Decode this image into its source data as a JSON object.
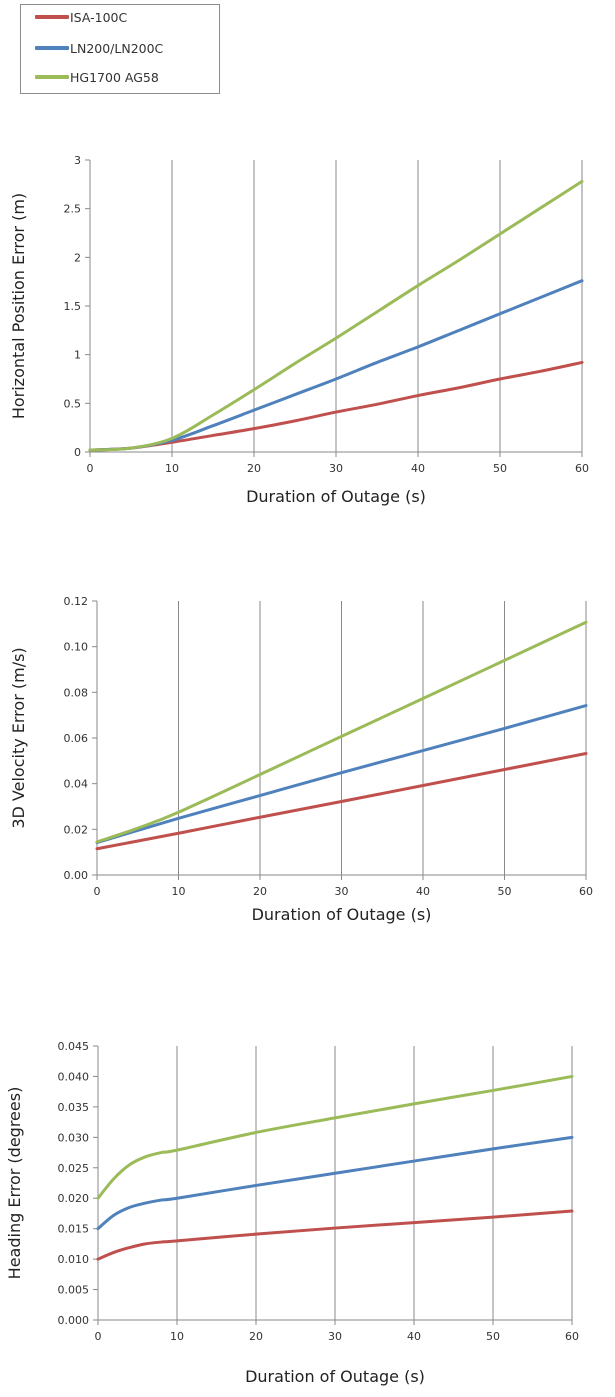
{
  "legend": {
    "items": [
      {
        "label": "ISA-100C",
        "color": "#c0504d"
      },
      {
        "label": "LN200/LN200C",
        "color": "#4f81bd"
      },
      {
        "label": "HG1700 AG58",
        "color": "#9bbb59"
      }
    ]
  },
  "chart_data": [
    {
      "type": "line",
      "title": "",
      "xlabel": "Duration of Outage (s)",
      "ylabel": "Horizontal Position Error (m)",
      "xlim": [
        0,
        60
      ],
      "ylim": [
        0,
        3
      ],
      "xticks": [
        "0",
        "10",
        "20",
        "30",
        "40",
        "50",
        "60"
      ],
      "yticks": [
        "0",
        "0.5",
        "1",
        "1.5",
        "2",
        "2.5",
        "3"
      ],
      "grid": "vertical",
      "series": [
        {
          "name": "ISA-100C",
          "color": "#c0504d",
          "x": [
            0,
            5,
            10,
            15,
            20,
            25,
            30,
            35,
            40,
            45,
            50,
            55,
            60
          ],
          "y": [
            0.02,
            0.04,
            0.1,
            0.17,
            0.24,
            0.32,
            0.41,
            0.49,
            0.58,
            0.66,
            0.75,
            0.83,
            0.92
          ]
        },
        {
          "name": "LN200/LN200C",
          "color": "#4f81bd",
          "x": [
            0,
            5,
            10,
            15,
            20,
            25,
            30,
            35,
            40,
            45,
            50,
            55,
            60
          ],
          "y": [
            0.02,
            0.04,
            0.12,
            0.27,
            0.43,
            0.59,
            0.75,
            0.92,
            1.08,
            1.25,
            1.42,
            1.59,
            1.76
          ]
        },
        {
          "name": "HG1700 AG58",
          "color": "#9bbb59",
          "x": [
            0,
            5,
            10,
            15,
            20,
            25,
            30,
            35,
            40,
            45,
            50,
            55,
            60
          ],
          "y": [
            0.02,
            0.04,
            0.14,
            0.38,
            0.64,
            0.91,
            1.17,
            1.44,
            1.71,
            1.97,
            2.24,
            2.51,
            2.78
          ]
        }
      ]
    },
    {
      "type": "line",
      "title": "",
      "xlabel": "Duration of Outage (s)",
      "ylabel": "3D Velocity Error (m/s)",
      "xlim": [
        0,
        60
      ],
      "ylim": [
        0,
        0.12
      ],
      "xticks": [
        "0",
        "10",
        "20",
        "30",
        "40",
        "50",
        "60"
      ],
      "yticks": [
        "0.00",
        "0.02",
        "0.04",
        "0.06",
        "0.08",
        "0.10",
        "0.12"
      ],
      "grid": "vertical",
      "series": [
        {
          "name": "ISA-100C",
          "color": "#c0504d",
          "x": [
            0,
            10,
            20,
            30,
            40,
            50,
            60
          ],
          "y": [
            0.0115,
            0.0183,
            0.0253,
            0.0322,
            0.0392,
            0.0462,
            0.0532
          ]
        },
        {
          "name": "LN200/LN200C",
          "color": "#4f81bd",
          "x": [
            0,
            10,
            20,
            30,
            40,
            50,
            60
          ],
          "y": [
            0.0142,
            0.0248,
            0.0348,
            0.0448,
            0.0545,
            0.0642,
            0.0742
          ]
        },
        {
          "name": "HG1700 AG58",
          "color": "#9bbb59",
          "x": [
            0,
            5,
            10,
            20,
            30,
            40,
            50,
            60
          ],
          "y": [
            0.0145,
            0.0205,
            0.0275,
            0.044,
            0.0607,
            0.0773,
            0.094,
            0.1107
          ]
        }
      ]
    },
    {
      "type": "line",
      "title": "",
      "xlabel": "Duration of Outage (s)",
      "ylabel": "Heading Error (degrees)",
      "xlim": [
        0,
        60
      ],
      "ylim": [
        0,
        0.045
      ],
      "xticks": [
        "0",
        "10",
        "20",
        "30",
        "40",
        "50",
        "60"
      ],
      "yticks": [
        "0.000",
        "0.005",
        "0.010",
        "0.015",
        "0.020",
        "0.025",
        "0.030",
        "0.035",
        "0.040",
        "0.045"
      ],
      "grid": "vertical",
      "series": [
        {
          "name": "ISA-100C",
          "color": "#c0504d",
          "x": [
            0,
            2,
            4,
            6,
            8,
            10,
            20,
            30,
            40,
            50,
            60
          ],
          "y": [
            0.01,
            0.0111,
            0.0119,
            0.0125,
            0.0128,
            0.013,
            0.0141,
            0.0151,
            0.016,
            0.0169,
            0.0179
          ]
        },
        {
          "name": "LN200/LN200C",
          "color": "#4f81bd",
          "x": [
            0,
            2,
            4,
            6,
            8,
            10,
            20,
            30,
            40,
            50,
            60
          ],
          "y": [
            0.015,
            0.0172,
            0.0185,
            0.0192,
            0.0197,
            0.02,
            0.0221,
            0.0241,
            0.0261,
            0.0281,
            0.03
          ]
        },
        {
          "name": "HG1700 AG58",
          "color": "#9bbb59",
          "x": [
            0,
            2,
            4,
            6,
            8,
            10,
            20,
            30,
            40,
            50,
            60
          ],
          "y": [
            0.02,
            0.0232,
            0.0255,
            0.0268,
            0.0275,
            0.0279,
            0.0308,
            0.0332,
            0.0355,
            0.0377,
            0.04
          ]
        }
      ]
    }
  ]
}
